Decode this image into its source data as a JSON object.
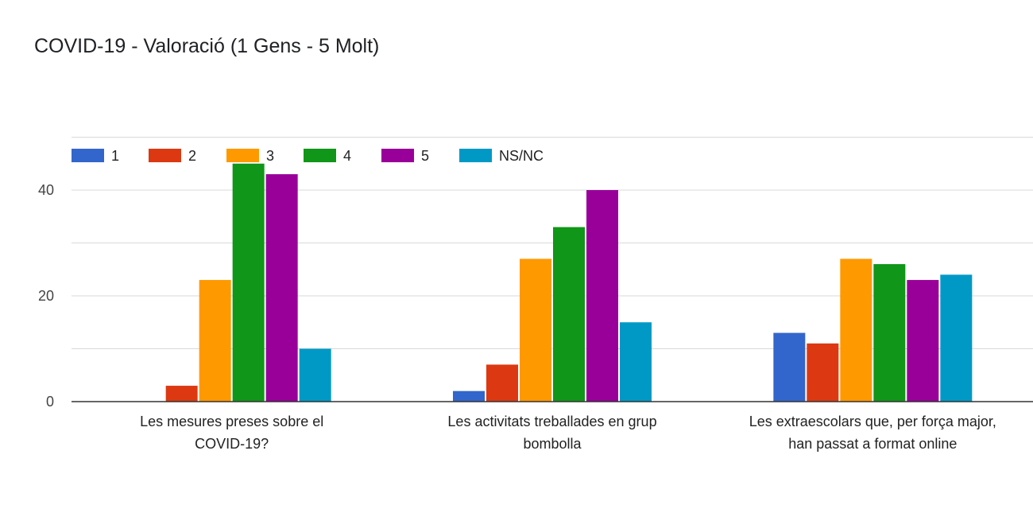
{
  "chart_data": {
    "type": "bar",
    "title": "COVID-19 - Valoració (1 Gens - 5 Molt)",
    "categories": [
      [
        "Les mesures preses sobre el",
        "COVID-19?"
      ],
      [
        "Les activitats treballades en grup",
        "bombolla"
      ],
      [
        "Les extraescolars que, per força major,",
        "han passat a format online"
      ]
    ],
    "series": [
      {
        "name": "1",
        "color": "#3366cc",
        "values": [
          0,
          2,
          13
        ]
      },
      {
        "name": "2",
        "color": "#dc3912",
        "values": [
          3,
          7,
          11
        ]
      },
      {
        "name": "3",
        "color": "#ff9900",
        "values": [
          23,
          27,
          27
        ]
      },
      {
        "name": "4",
        "color": "#109618",
        "values": [
          45,
          33,
          26
        ]
      },
      {
        "name": "5",
        "color": "#990099",
        "values": [
          43,
          40,
          23
        ]
      },
      {
        "name": "NS/NC",
        "color": "#0099c6",
        "values": [
          10,
          15,
          24
        ]
      }
    ],
    "y_ticks": [
      0,
      20,
      40
    ],
    "ylim": [
      0,
      50
    ],
    "legend_position": "top-left",
    "grid": true
  }
}
